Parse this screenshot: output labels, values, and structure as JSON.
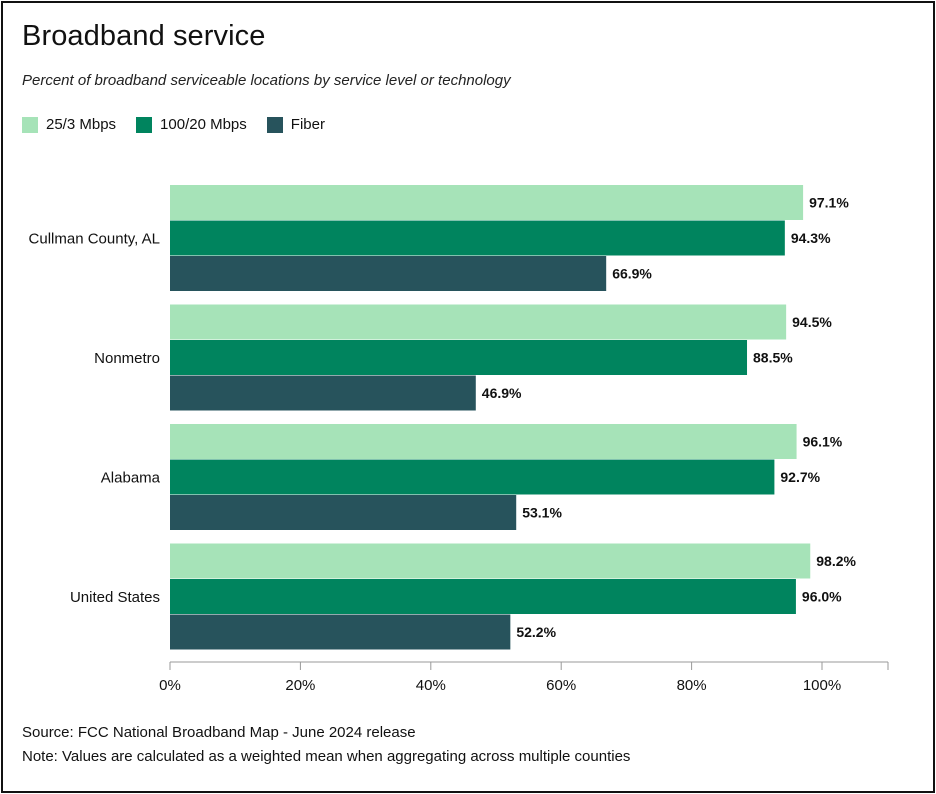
{
  "chart_data": {
    "type": "bar",
    "orientation": "horizontal",
    "title": "Broadband service",
    "subtitle": "Percent of broadband serviceable locations by service level or technology",
    "categories": [
      "Cullman County, AL",
      "Nonmetro",
      "Alabama",
      "United States"
    ],
    "series": [
      {
        "name": "25/3 Mbps",
        "color": "#a6e3b8",
        "values": [
          97.1,
          94.5,
          96.1,
          98.2
        ],
        "labels": [
          "97.1%",
          "94.5%",
          "96.1%",
          "98.2%"
        ]
      },
      {
        "name": "100/20 Mbps",
        "color": "#00845e",
        "values": [
          94.3,
          88.5,
          92.7,
          96.0
        ],
        "labels": [
          "94.3%",
          "88.5%",
          "92.7%",
          "96.0%"
        ]
      },
      {
        "name": "Fiber",
        "color": "#27535c",
        "values": [
          66.9,
          46.9,
          53.1,
          52.2
        ],
        "labels": [
          "66.9%",
          "46.9%",
          "53.1%",
          "52.2%"
        ]
      }
    ],
    "x_ticks": [
      "0%",
      "20%",
      "40%",
      "60%",
      "80%",
      "100%"
    ],
    "x_tick_values": [
      0,
      20,
      40,
      60,
      80,
      100
    ],
    "xlim": [
      0,
      110
    ],
    "grid": false,
    "legend_position": "top-left"
  },
  "footer": {
    "source": "Source: FCC National Broadband Map - June 2024 release",
    "note": "Note: Values are calculated as a weighted mean when aggregating across multiple counties"
  }
}
